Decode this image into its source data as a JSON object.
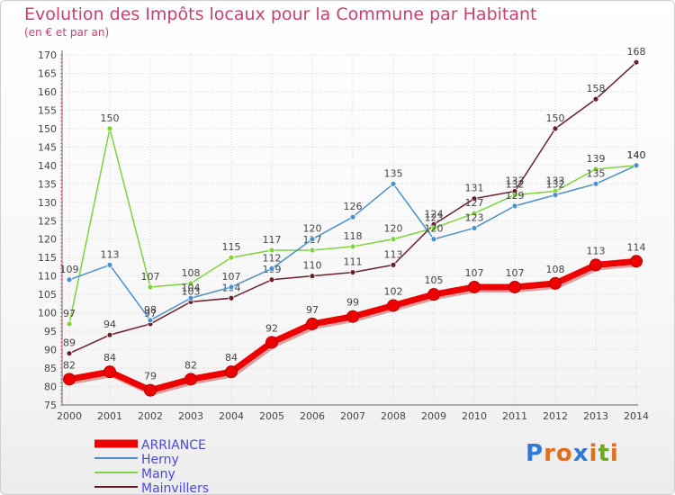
{
  "title": "Evolution des Impôts locaux pour la Commune par Habitant",
  "subtitle": "(en € et par an)",
  "logo": {
    "letters": [
      "P",
      "r",
      "o",
      "x",
      "i",
      "t",
      "i"
    ],
    "colors": [
      "#2e7ad6",
      "#e07020",
      "#e07020",
      "#2e7ad6",
      "#e07020",
      "#6aaa2a",
      "#e07020"
    ]
  },
  "chart_data": {
    "type": "line",
    "title": "Evolution des Impôts locaux pour la Commune par Habitant",
    "subtitle": "(en € et par an)",
    "x": [
      "2000",
      "2001",
      "2002",
      "2003",
      "2004",
      "2005",
      "2006",
      "2007",
      "2008",
      "2009",
      "2010",
      "2011",
      "2012",
      "2013",
      "2014"
    ],
    "ylim": [
      75,
      170
    ],
    "yticks": [
      75,
      80,
      85,
      90,
      95,
      100,
      105,
      110,
      115,
      120,
      125,
      130,
      135,
      140,
      145,
      150,
      155,
      160,
      165,
      170
    ],
    "grid": true,
    "legend_position": "bottom-left",
    "series": [
      {
        "name": "ARRIANCE",
        "color": "#ee0000",
        "values": [
          82,
          84,
          79,
          82,
          84,
          92,
          97,
          99,
          102,
          105,
          107,
          107,
          108,
          113,
          114
        ]
      },
      {
        "name": "Herny",
        "color": "#4a90cc",
        "values": [
          109,
          113,
          98,
          104,
          107,
          112,
          120,
          126,
          135,
          120,
          123,
          129,
          132,
          135,
          140
        ]
      },
      {
        "name": "Many",
        "color": "#7fd33a",
        "values": [
          97,
          150,
          107,
          108,
          115,
          117,
          117,
          118,
          120,
          123,
          127,
          132,
          133,
          139,
          140
        ]
      },
      {
        "name": "Mainvillers",
        "color": "#6b1f2a",
        "values": [
          89,
          94,
          97,
          103,
          104,
          109,
          110,
          111,
          113,
          124,
          131,
          133,
          150,
          158,
          168
        ]
      }
    ]
  }
}
